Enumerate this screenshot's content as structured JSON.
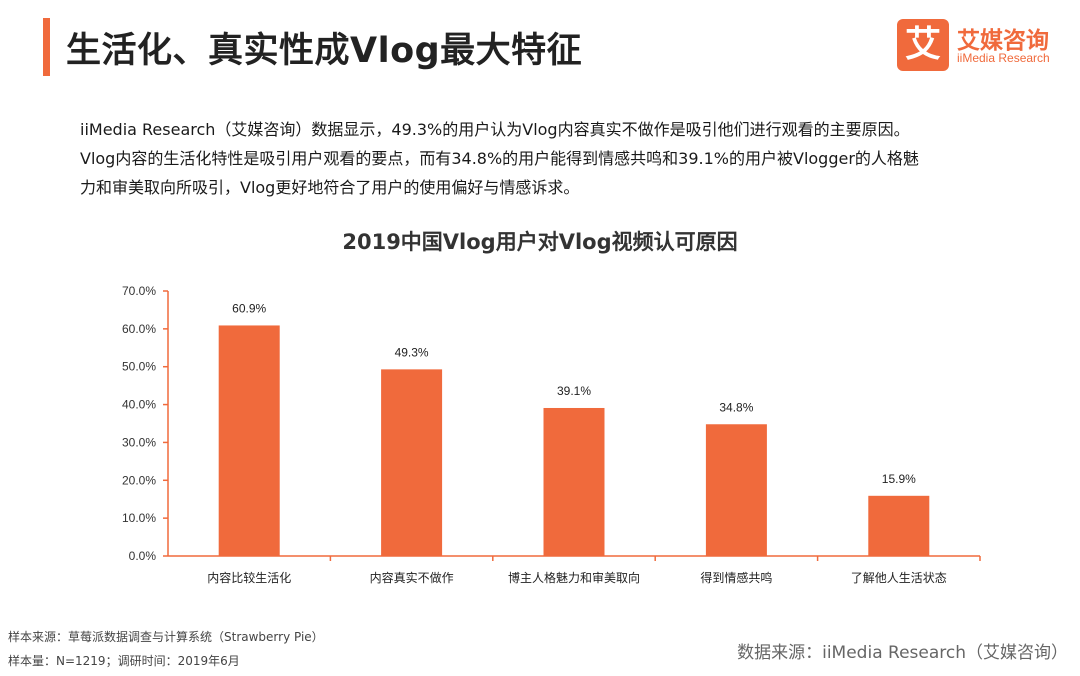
{
  "header": {
    "title": "生活化、真实性成Vlog最大特征"
  },
  "logo": {
    "mark": "艾",
    "name_cn": "艾媒咨询",
    "name_en": "iiMedia Research"
  },
  "intro": {
    "line1": "iiMedia Research（艾媒咨询）数据显示，49.3%的用户认为Vlog内容真实不做作是吸引他们进行观看的主要原因。",
    "line2": "Vlog内容的生活化特性是吸引用户观看的要点，而有34.8%的用户能得到情感共鸣和39.1%的用户被Vlogger的人格魅",
    "line3": "力和审美取向所吸引，Vlog更好地符合了用户的使用偏好与情感诉求。"
  },
  "colors": {
    "accent": "#f06a3c",
    "axis": "#f06a3c"
  },
  "chart_data": {
    "type": "bar",
    "title": "2019中国Vlog用户对Vlog视频认可原因",
    "categories": [
      "内容比较生活化",
      "内容真实不做作",
      "博主人格魅力和审美取向",
      "得到情感共鸣",
      "了解他人生活状态"
    ],
    "values": [
      60.9,
      49.3,
      39.1,
      34.8,
      15.9
    ],
    "value_labels": [
      "60.9%",
      "49.3%",
      "39.1%",
      "34.8%",
      "15.9%"
    ],
    "ylim": [
      0,
      70
    ],
    "y_ticks": [
      0,
      10,
      20,
      30,
      40,
      50,
      60,
      70
    ],
    "y_tick_labels": [
      "0.0%",
      "10.0%",
      "20.0%",
      "30.0%",
      "40.0%",
      "50.0%",
      "60.0%",
      "70.0%"
    ],
    "xlabel": "",
    "ylabel": "",
    "grid": false,
    "bar_color": "#f06a3c"
  },
  "footer": {
    "sample_source": "样本来源：草莓派数据调查与计算系统（Strawberry Pie）",
    "sample_size": "样本量：N=1219；调研时间：2019年6月",
    "data_source": "数据来源：iiMedia Research（艾媒咨询）"
  }
}
